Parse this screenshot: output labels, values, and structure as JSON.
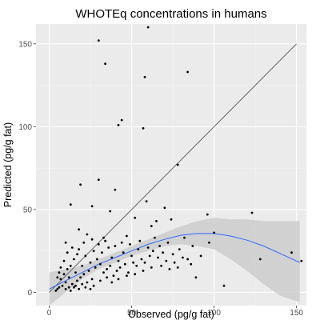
{
  "chart_data": {
    "type": "scatter",
    "title": "WHOTEq concentrations in humans",
    "xlabel": "Observed (pg/g fat)",
    "ylabel": "Predicted (pg/g fat)",
    "xlim": [
      -8,
      156
    ],
    "ylim": [
      -8,
      162
    ],
    "x_ticks": [
      0,
      50,
      100,
      150
    ],
    "y_ticks": [
      0,
      50,
      100,
      150
    ],
    "grid": true,
    "legend": "none",
    "colors": {
      "panel": "#ebebeb",
      "grid_major": "#ffffff",
      "grid_minor": "#f4f4f4",
      "points": "#000000",
      "identity_line": "#555555",
      "smooth_line": "#3366ff",
      "confidence_band": "#cccccc"
    },
    "series": [
      {
        "type": "scatter",
        "points": [
          [
            30,
            152
          ],
          [
            60,
            160
          ],
          [
            34,
            138
          ],
          [
            58,
            130
          ],
          [
            84,
            133
          ],
          [
            42,
            101
          ],
          [
            44,
            104
          ],
          [
            57,
            99
          ],
          [
            78,
            77
          ],
          [
            19,
            65
          ],
          [
            30,
            68
          ],
          [
            40,
            62
          ],
          [
            13,
            53
          ],
          [
            26,
            52
          ],
          [
            37,
            49
          ],
          [
            59,
            55
          ],
          [
            70,
            51
          ],
          [
            74,
            44
          ],
          [
            96,
            47
          ],
          [
            123,
            48
          ],
          [
            147,
            24
          ],
          [
            153,
            19
          ],
          [
            128,
            20
          ],
          [
            106,
            4
          ],
          [
            89,
            9
          ],
          [
            78,
            15
          ],
          [
            92,
            22
          ],
          [
            82,
            33
          ],
          [
            87,
            28
          ],
          [
            97,
            30
          ],
          [
            100,
            36
          ],
          [
            18,
            38
          ],
          [
            23,
            35
          ],
          [
            10,
            30
          ],
          [
            33,
            33
          ],
          [
            47,
            34
          ],
          [
            52,
            45
          ],
          [
            62,
            40
          ],
          [
            65,
            43
          ],
          [
            67,
            28
          ],
          [
            72,
            30
          ],
          [
            55,
            31
          ],
          [
            50,
            22
          ],
          [
            45,
            24
          ],
          [
            42,
            19
          ],
          [
            38,
            21
          ],
          [
            36,
            27
          ],
          [
            32,
            24
          ],
          [
            29,
            20
          ],
          [
            27,
            25
          ],
          [
            25,
            18
          ],
          [
            22,
            22
          ],
          [
            20,
            16
          ],
          [
            18,
            26
          ],
          [
            16,
            12
          ],
          [
            15,
            20
          ],
          [
            13,
            16
          ],
          [
            12,
            9
          ],
          [
            11,
            14
          ],
          [
            10,
            6
          ],
          [
            9,
            11
          ],
          [
            8,
            4
          ],
          [
            7,
            8
          ],
          [
            6,
            3
          ],
          [
            5,
            2
          ],
          [
            4,
            1
          ],
          [
            14,
            5
          ],
          [
            17,
            7
          ],
          [
            19,
            9
          ],
          [
            21,
            11
          ],
          [
            24,
            13
          ],
          [
            26,
            8
          ],
          [
            28,
            15
          ],
          [
            31,
            17
          ],
          [
            33,
            12
          ],
          [
            35,
            14
          ],
          [
            37,
            16
          ],
          [
            39,
            10
          ],
          [
            41,
            13
          ],
          [
            43,
            15
          ],
          [
            46,
            17
          ],
          [
            48,
            12
          ],
          [
            51,
            18
          ],
          [
            53,
            16
          ],
          [
            56,
            20
          ],
          [
            58,
            18
          ],
          [
            61,
            22
          ],
          [
            63,
            25
          ],
          [
            66,
            21
          ],
          [
            69,
            24
          ],
          [
            71,
            19
          ],
          [
            75,
            23
          ],
          [
            79,
            26
          ],
          [
            84,
            20
          ],
          [
            64,
            33
          ],
          [
            60,
            27
          ],
          [
            54,
            26
          ],
          [
            49,
            29
          ],
          [
            44,
            30
          ],
          [
            40,
            28
          ],
          [
            34,
            31
          ],
          [
            30,
            29
          ],
          [
            26,
            32
          ],
          [
            21,
            30
          ],
          [
            17,
            23
          ],
          [
            14,
            27
          ],
          [
            11,
            24
          ],
          [
            9,
            19
          ],
          [
            7,
            15
          ],
          [
            6,
            12
          ],
          [
            5,
            9
          ],
          [
            12,
            3
          ],
          [
            16,
            4
          ],
          [
            20,
            5
          ],
          [
            23,
            6
          ],
          [
            27,
            4
          ],
          [
            31,
            7
          ],
          [
            35,
            9
          ],
          [
            38,
            6
          ],
          [
            42,
            8
          ],
          [
            47,
            10
          ],
          [
            52,
            11
          ],
          [
            57,
            13
          ],
          [
            62,
            15
          ],
          [
            68,
            16
          ],
          [
            73,
            14
          ],
          [
            76,
            18
          ],
          [
            81,
            21
          ],
          [
            86,
            17
          ],
          [
            10,
            2
          ],
          [
            13,
            1
          ],
          [
            15,
            3
          ],
          [
            18,
            2
          ],
          [
            22,
            3
          ],
          [
            25,
            2
          ]
        ]
      },
      {
        "type": "line",
        "points": [
          [
            0,
            0
          ],
          [
            150,
            150
          ]
        ]
      },
      {
        "type": "smooth",
        "points": [
          [
            0,
            2
          ],
          [
            10,
            7
          ],
          [
            20,
            12
          ],
          [
            30,
            17
          ],
          [
            40,
            21
          ],
          [
            50,
            25
          ],
          [
            60,
            29
          ],
          [
            70,
            32
          ],
          [
            80,
            34.5
          ],
          [
            90,
            35.5
          ],
          [
            100,
            35.5
          ],
          [
            110,
            34
          ],
          [
            120,
            31.5
          ],
          [
            130,
            28
          ],
          [
            140,
            23.5
          ],
          [
            152,
            18
          ]
        ],
        "lower": [
          [
            0,
            -8
          ],
          [
            10,
            0
          ],
          [
            20,
            8
          ],
          [
            30,
            14
          ],
          [
            40,
            18
          ],
          [
            50,
            22
          ],
          [
            60,
            25
          ],
          [
            70,
            28
          ],
          [
            80,
            29
          ],
          [
            90,
            28
          ],
          [
            100,
            26
          ],
          [
            110,
            20
          ],
          [
            120,
            13
          ],
          [
            130,
            5
          ],
          [
            140,
            -2
          ],
          [
            152,
            -6
          ]
        ],
        "upper": [
          [
            0,
            12
          ],
          [
            10,
            14
          ],
          [
            20,
            16
          ],
          [
            30,
            20
          ],
          [
            40,
            24
          ],
          [
            50,
            28
          ],
          [
            60,
            32
          ],
          [
            70,
            36
          ],
          [
            80,
            40
          ],
          [
            90,
            43
          ],
          [
            100,
            45
          ],
          [
            110,
            44
          ],
          [
            120,
            44
          ],
          [
            130,
            43
          ],
          [
            140,
            43
          ],
          [
            152,
            43
          ]
        ]
      }
    ]
  }
}
